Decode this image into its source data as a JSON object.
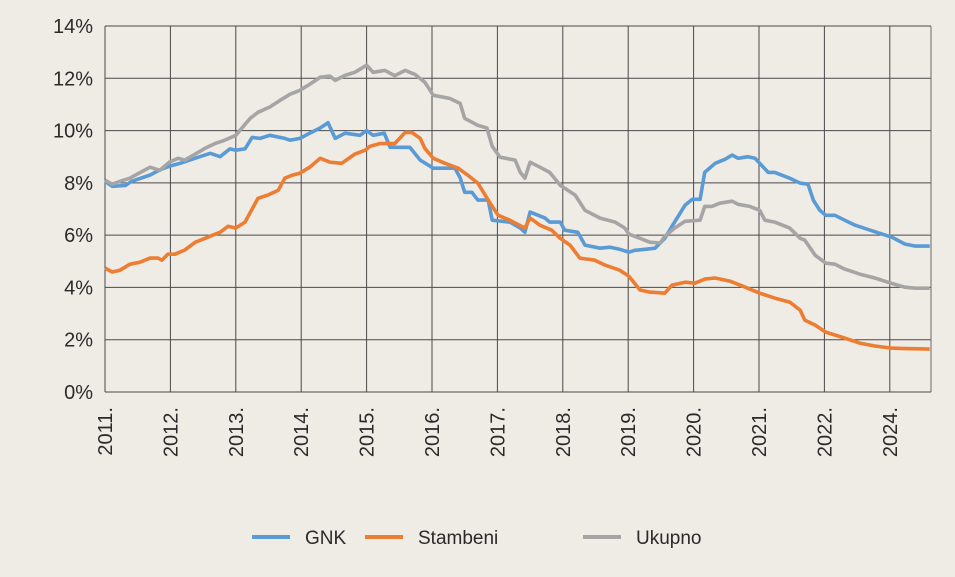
{
  "chart_data": {
    "type": "line",
    "title": "",
    "xlabel": "",
    "ylabel": "",
    "x_unit": "years since start of 2011 (tick positions)",
    "xlim": [
      0,
      12.63
    ],
    "ylim": [
      0,
      14
    ],
    "grid": true,
    "legend_position": "bottom",
    "x_ticks": [
      {
        "x": 0,
        "label": "2011."
      },
      {
        "x": 1,
        "label": "2012."
      },
      {
        "x": 2,
        "label": "2013."
      },
      {
        "x": 3,
        "label": "2014."
      },
      {
        "x": 4,
        "label": "2015."
      },
      {
        "x": 5,
        "label": "2016."
      },
      {
        "x": 6,
        "label": "2017."
      },
      {
        "x": 7,
        "label": "2018."
      },
      {
        "x": 8,
        "label": "2019."
      },
      {
        "x": 9,
        "label": "2020."
      },
      {
        "x": 10,
        "label": "2021."
      },
      {
        "x": 11,
        "label": "2022."
      },
      {
        "x": 12,
        "label": "2024."
      }
    ],
    "y_ticks": [
      {
        "y": 0,
        "label": "0%"
      },
      {
        "y": 2,
        "label": "2%"
      },
      {
        "y": 4,
        "label": "4%"
      },
      {
        "y": 6,
        "label": "6%"
      },
      {
        "y": 8,
        "label": "8%"
      },
      {
        "y": 10,
        "label": "10%"
      },
      {
        "y": 12,
        "label": "12%"
      },
      {
        "y": 14,
        "label": "14%"
      }
    ],
    "series": [
      {
        "name": "GNK",
        "color": "#5b9bd5",
        "points": [
          [
            0,
            8.06
          ],
          [
            0.11,
            7.87
          ],
          [
            0.31,
            7.9
          ],
          [
            0.41,
            8.06
          ],
          [
            0.69,
            8.3
          ],
          [
            0.84,
            8.5
          ],
          [
            0.99,
            8.64
          ],
          [
            1.15,
            8.75
          ],
          [
            1.45,
            9.0
          ],
          [
            1.61,
            9.13
          ],
          [
            1.76,
            9.0
          ],
          [
            1.91,
            9.3
          ],
          [
            2.0,
            9.25
          ],
          [
            2.14,
            9.3
          ],
          [
            2.25,
            9.74
          ],
          [
            2.37,
            9.7
          ],
          [
            2.52,
            9.82
          ],
          [
            2.75,
            9.7
          ],
          [
            2.83,
            9.63
          ],
          [
            2.98,
            9.7
          ],
          [
            3.13,
            9.9
          ],
          [
            3.29,
            10.1
          ],
          [
            3.41,
            10.3
          ],
          [
            3.52,
            9.7
          ],
          [
            3.67,
            9.9
          ],
          [
            3.9,
            9.82
          ],
          [
            4.0,
            10.0
          ],
          [
            4.1,
            9.82
          ],
          [
            4.27,
            9.9
          ],
          [
            4.36,
            9.36
          ],
          [
            4.66,
            9.36
          ],
          [
            4.82,
            8.87
          ],
          [
            5.02,
            8.56
          ],
          [
            5.35,
            8.56
          ],
          [
            5.43,
            8.2
          ],
          [
            5.5,
            7.64
          ],
          [
            5.61,
            7.64
          ],
          [
            5.7,
            7.34
          ],
          [
            5.86,
            7.34
          ],
          [
            5.92,
            6.57
          ],
          [
            6.19,
            6.5
          ],
          [
            6.35,
            6.27
          ],
          [
            6.42,
            6.11
          ],
          [
            6.5,
            6.88
          ],
          [
            6.73,
            6.65
          ],
          [
            6.8,
            6.5
          ],
          [
            6.96,
            6.5
          ],
          [
            7.03,
            6.19
          ],
          [
            7.23,
            6.11
          ],
          [
            7.34,
            5.62
          ],
          [
            7.57,
            5.5
          ],
          [
            7.72,
            5.54
          ],
          [
            7.87,
            5.46
          ],
          [
            8.01,
            5.35
          ],
          [
            8.1,
            5.42
          ],
          [
            8.26,
            5.46
          ],
          [
            8.41,
            5.5
          ],
          [
            8.56,
            5.88
          ],
          [
            8.67,
            6.34
          ],
          [
            8.87,
            7.15
          ],
          [
            8.98,
            7.37
          ],
          [
            9.1,
            7.37
          ],
          [
            9.17,
            8.4
          ],
          [
            9.33,
            8.75
          ],
          [
            9.48,
            8.9
          ],
          [
            9.59,
            9.06
          ],
          [
            9.68,
            8.94
          ],
          [
            9.83,
            9.0
          ],
          [
            9.94,
            8.94
          ],
          [
            10.05,
            8.64
          ],
          [
            10.14,
            8.4
          ],
          [
            10.24,
            8.4
          ],
          [
            10.47,
            8.18
          ],
          [
            10.63,
            7.99
          ],
          [
            10.75,
            7.95
          ],
          [
            10.83,
            7.34
          ],
          [
            10.93,
            6.95
          ],
          [
            11.02,
            6.76
          ],
          [
            11.16,
            6.76
          ],
          [
            11.31,
            6.57
          ],
          [
            11.47,
            6.38
          ],
          [
            11.7,
            6.19
          ],
          [
            11.93,
            6.0
          ],
          [
            12.03,
            5.92
          ],
          [
            12.23,
            5.66
          ],
          [
            12.39,
            5.58
          ],
          [
            12.61,
            5.58
          ]
        ]
      },
      {
        "name": "Stambeni",
        "color": "#ed7d31",
        "points": [
          [
            0,
            4.74
          ],
          [
            0.11,
            4.59
          ],
          [
            0.23,
            4.66
          ],
          [
            0.38,
            4.89
          ],
          [
            0.54,
            4.97
          ],
          [
            0.69,
            5.12
          ],
          [
            0.81,
            5.12
          ],
          [
            0.87,
            5.04
          ],
          [
            0.96,
            5.27
          ],
          [
            1.07,
            5.27
          ],
          [
            1.22,
            5.43
          ],
          [
            1.38,
            5.73
          ],
          [
            1.53,
            5.88
          ],
          [
            1.65,
            6.0
          ],
          [
            1.76,
            6.11
          ],
          [
            1.88,
            6.34
          ],
          [
            2.0,
            6.27
          ],
          [
            2.14,
            6.5
          ],
          [
            2.34,
            7.41
          ],
          [
            2.49,
            7.53
          ],
          [
            2.65,
            7.72
          ],
          [
            2.75,
            8.18
          ],
          [
            2.86,
            8.29
          ],
          [
            2.98,
            8.37
          ],
          [
            3.13,
            8.6
          ],
          [
            3.29,
            8.94
          ],
          [
            3.44,
            8.79
          ],
          [
            3.62,
            8.75
          ],
          [
            3.82,
            9.1
          ],
          [
            3.98,
            9.25
          ],
          [
            4.05,
            9.4
          ],
          [
            4.2,
            9.5
          ],
          [
            4.43,
            9.5
          ],
          [
            4.59,
            9.93
          ],
          [
            4.69,
            9.93
          ],
          [
            4.82,
            9.7
          ],
          [
            4.89,
            9.32
          ],
          [
            5.02,
            8.94
          ],
          [
            5.2,
            8.75
          ],
          [
            5.4,
            8.56
          ],
          [
            5.55,
            8.29
          ],
          [
            5.7,
            7.99
          ],
          [
            5.86,
            7.34
          ],
          [
            6.01,
            6.76
          ],
          [
            6.19,
            6.57
          ],
          [
            6.42,
            6.27
          ],
          [
            6.5,
            6.65
          ],
          [
            6.65,
            6.38
          ],
          [
            6.83,
            6.19
          ],
          [
            6.96,
            5.88
          ],
          [
            7.11,
            5.62
          ],
          [
            7.26,
            5.12
          ],
          [
            7.49,
            5.04
          ],
          [
            7.65,
            4.85
          ],
          [
            7.87,
            4.66
          ],
          [
            8.01,
            4.43
          ],
          [
            8.18,
            3.9
          ],
          [
            8.33,
            3.82
          ],
          [
            8.56,
            3.78
          ],
          [
            8.67,
            4.09
          ],
          [
            8.87,
            4.2
          ],
          [
            9.02,
            4.16
          ],
          [
            9.17,
            4.32
          ],
          [
            9.33,
            4.36
          ],
          [
            9.56,
            4.24
          ],
          [
            9.79,
            4.01
          ],
          [
            10.01,
            3.78
          ],
          [
            10.24,
            3.59
          ],
          [
            10.47,
            3.44
          ],
          [
            10.63,
            3.13
          ],
          [
            10.7,
            2.75
          ],
          [
            10.86,
            2.56
          ],
          [
            11.02,
            2.29
          ],
          [
            11.31,
            2.06
          ],
          [
            11.54,
            1.87
          ],
          [
            11.77,
            1.76
          ],
          [
            12.02,
            1.68
          ],
          [
            12.23,
            1.66
          ],
          [
            12.61,
            1.64
          ]
        ]
      },
      {
        "name": "Ukupno",
        "color": "#a5a5a5",
        "points": [
          [
            0,
            8.1
          ],
          [
            0.11,
            7.95
          ],
          [
            0.23,
            8.06
          ],
          [
            0.38,
            8.18
          ],
          [
            0.54,
            8.4
          ],
          [
            0.69,
            8.6
          ],
          [
            0.84,
            8.48
          ],
          [
            0.99,
            8.8
          ],
          [
            1.12,
            8.94
          ],
          [
            1.22,
            8.87
          ],
          [
            1.38,
            9.1
          ],
          [
            1.53,
            9.32
          ],
          [
            1.68,
            9.5
          ],
          [
            1.83,
            9.63
          ],
          [
            2.0,
            9.82
          ],
          [
            2.22,
            10.47
          ],
          [
            2.34,
            10.7
          ],
          [
            2.52,
            10.9
          ],
          [
            2.68,
            11.16
          ],
          [
            2.83,
            11.39
          ],
          [
            2.98,
            11.54
          ],
          [
            3.13,
            11.77
          ],
          [
            3.29,
            12.04
          ],
          [
            3.44,
            12.08
          ],
          [
            3.52,
            11.92
          ],
          [
            3.67,
            12.11
          ],
          [
            3.82,
            12.23
          ],
          [
            4.0,
            12.5
          ],
          [
            4.1,
            12.23
          ],
          [
            4.28,
            12.3
          ],
          [
            4.43,
            12.1
          ],
          [
            4.59,
            12.3
          ],
          [
            4.74,
            12.15
          ],
          [
            4.89,
            11.85
          ],
          [
            5.02,
            11.35
          ],
          [
            5.27,
            11.23
          ],
          [
            5.43,
            11.04
          ],
          [
            5.5,
            10.47
          ],
          [
            5.7,
            10.2
          ],
          [
            5.84,
            10.1
          ],
          [
            5.92,
            9.4
          ],
          [
            6.04,
            8.98
          ],
          [
            6.27,
            8.87
          ],
          [
            6.35,
            8.4
          ],
          [
            6.42,
            8.18
          ],
          [
            6.5,
            8.79
          ],
          [
            6.65,
            8.6
          ],
          [
            6.8,
            8.4
          ],
          [
            6.96,
            7.91
          ],
          [
            7.19,
            7.53
          ],
          [
            7.34,
            6.95
          ],
          [
            7.57,
            6.65
          ],
          [
            7.8,
            6.5
          ],
          [
            7.95,
            6.27
          ],
          [
            8.01,
            6.04
          ],
          [
            8.18,
            5.88
          ],
          [
            8.33,
            5.73
          ],
          [
            8.49,
            5.7
          ],
          [
            8.56,
            5.96
          ],
          [
            8.71,
            6.27
          ],
          [
            8.87,
            6.53
          ],
          [
            9.1,
            6.57
          ],
          [
            9.17,
            7.1
          ],
          [
            9.28,
            7.1
          ],
          [
            9.4,
            7.22
          ],
          [
            9.59,
            7.3
          ],
          [
            9.68,
            7.18
          ],
          [
            9.86,
            7.1
          ],
          [
            10.01,
            6.95
          ],
          [
            10.09,
            6.57
          ],
          [
            10.24,
            6.5
          ],
          [
            10.47,
            6.27
          ],
          [
            10.63,
            5.88
          ],
          [
            10.7,
            5.81
          ],
          [
            10.86,
            5.23
          ],
          [
            11.02,
            4.93
          ],
          [
            11.16,
            4.89
          ],
          [
            11.31,
            4.7
          ],
          [
            11.54,
            4.51
          ],
          [
            11.77,
            4.36
          ],
          [
            12.02,
            4.16
          ],
          [
            12.23,
            4.01
          ],
          [
            12.39,
            3.97
          ],
          [
            12.61,
            3.97
          ]
        ]
      }
    ]
  }
}
